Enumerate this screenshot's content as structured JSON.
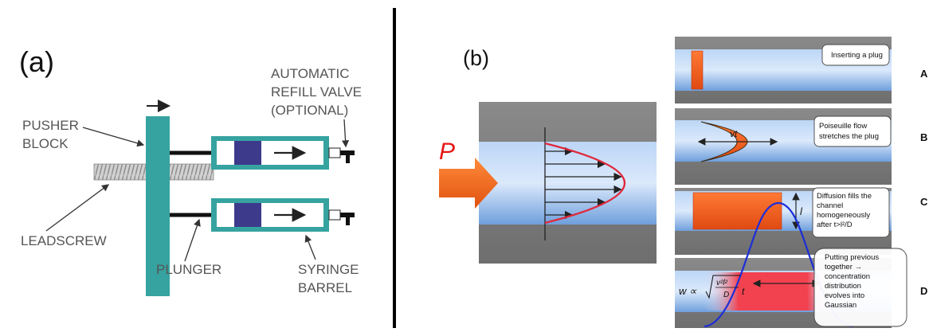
{
  "panel_a": {
    "panel_label": "(a)",
    "labels": {
      "pusher_block": [
        "PUSHER",
        "BLOCK"
      ],
      "refill_valve": [
        "AUTOMATIC",
        "REFILL VALVE",
        "(OPTIONAL)"
      ],
      "leadscrew": "LEADSCREW",
      "plunger": "PLUNGER",
      "syringe_barrel": [
        "SYRINGE",
        "BARREL"
      ]
    },
    "colors": {
      "pusher": "#36a3a0",
      "barrel": "#36a3a0",
      "plunger": "#3d3a8c",
      "text": "#555555"
    }
  },
  "panel_b": {
    "panel_label": "(b)",
    "pressure_label": "P",
    "stages": [
      {
        "letter": "A",
        "caption": [
          "Inserting a plug"
        ]
      },
      {
        "letter": "B",
        "caption": [
          "Poiseuille flow",
          "stretches the plug"
        ]
      },
      {
        "letter": "C",
        "caption": [
          "Diffusion fills the",
          "channel",
          "homogeneously",
          "after t>l²/D"
        ]
      },
      {
        "letter": "D",
        "caption": [
          "Putting previous",
          "together →",
          "concentration",
          "distribution",
          "evolves into",
          "Gaussian"
        ]
      }
    ],
    "symbols": {
      "vt": "vt",
      "l": "l",
      "w_lhs": "w ∝",
      "sqrt_num": "v²l²",
      "sqrt_den": "D",
      "sqrt_t": "t"
    },
    "colors": {
      "channel": "#8fb8ec",
      "wall": "#7d7d7d",
      "plug": "#ee5a1e",
      "profile": "#e0283a",
      "gaussian": "#1c2ed8",
      "arrow_p": "#f06a1f"
    }
  }
}
